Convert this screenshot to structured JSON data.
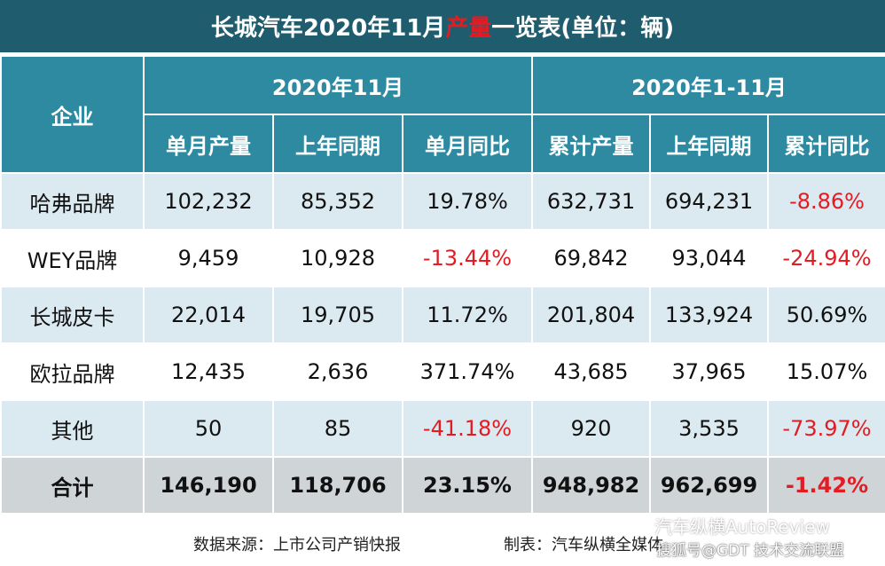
{
  "title": {
    "prefix": "长城汽车2020年11月",
    "highlight": "产量",
    "suffix": "一览表(单位：辆)"
  },
  "header": {
    "company": "企业",
    "group_month": "2020年11月",
    "group_ytd": "2020年1-11月",
    "columns": [
      "单月产量",
      "上年同期",
      "单月同比",
      "累计产量",
      "上年同期",
      "累计同比"
    ]
  },
  "rows": [
    {
      "name": "哈弗品牌",
      "cells": [
        "102,232",
        "85,352",
        "19.78%",
        "632,731",
        "694,231",
        "-8.86%"
      ]
    },
    {
      "name": "WEY品牌",
      "cells": [
        "9,459",
        "10,928",
        "-13.44%",
        "69,842",
        "93,044",
        "-24.94%"
      ]
    },
    {
      "name": "长城皮卡",
      "cells": [
        "22,014",
        "19,705",
        "11.72%",
        "201,804",
        "133,924",
        "50.69%"
      ]
    },
    {
      "name": "欧拉品牌",
      "cells": [
        "12,435",
        "2,636",
        "371.74%",
        "43,685",
        "37,965",
        "15.07%"
      ]
    },
    {
      "name": "其他",
      "cells": [
        "50",
        "85",
        "-41.18%",
        "920",
        "3,535",
        "-73.97%"
      ]
    }
  ],
  "total": {
    "name": "合计",
    "cells": [
      "146,190",
      "118,706",
      "23.15%",
      "948,982",
      "962,699",
      "-1.42%"
    ]
  },
  "footer": {
    "source": "数据来源：上市公司产销快报",
    "maker": "制表：汽车纵横全媒体"
  },
  "watermark": {
    "line1": "汽车纵横AutoReview",
    "line2": "搜狐号@GDT 技术交流联盟"
  },
  "colors": {
    "title_bg": "#1f5d6e",
    "header_bg": "#2e8aa1",
    "row_alt": "#dbe9f1",
    "total_bg": "#cfd4d7",
    "negative": "#e31b23"
  }
}
